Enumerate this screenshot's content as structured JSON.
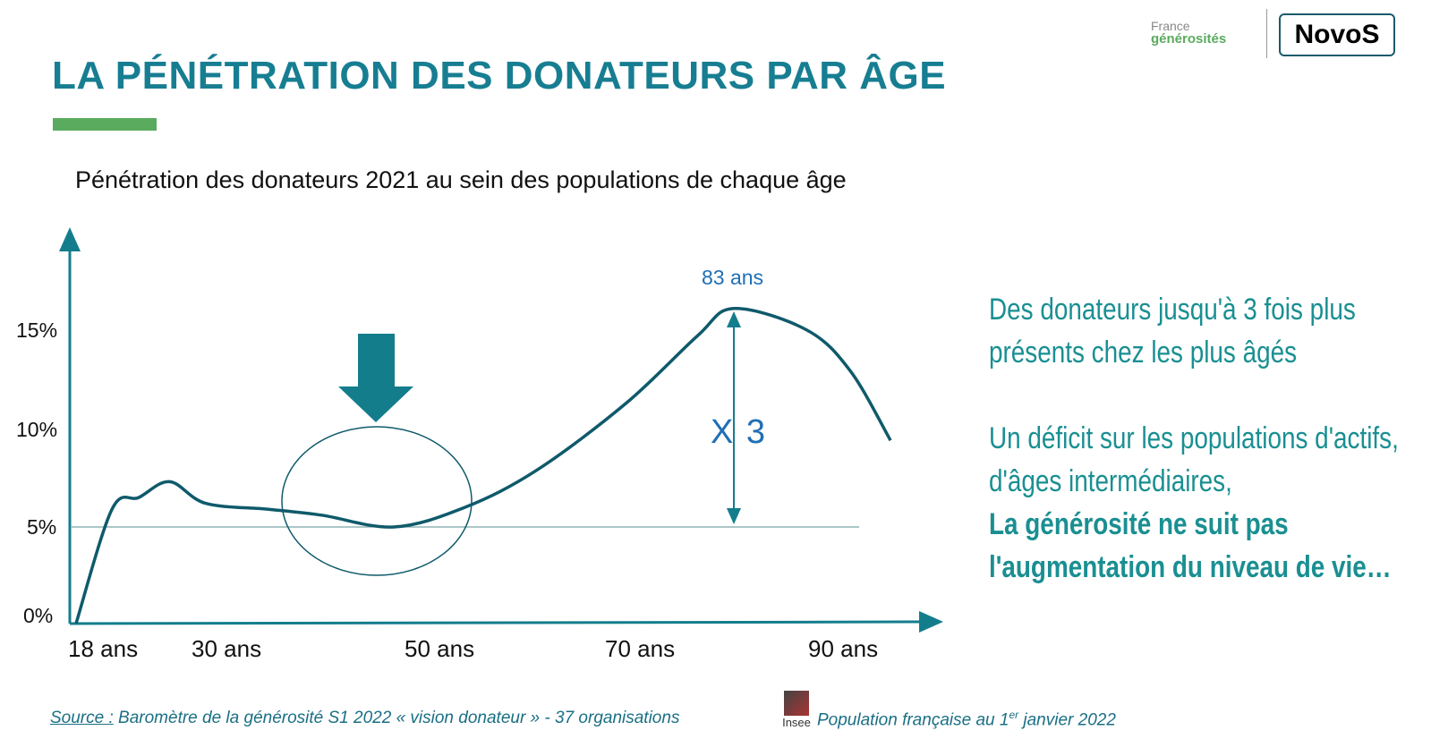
{
  "header": {
    "title": "LA PÉNÉTRATION DES DONATEURS PAR ÂGE",
    "logo_france_1": "France",
    "logo_france_2": "générosités",
    "logo_novo": "NovoS"
  },
  "subtitle": "Pénétration des donateurs 2021 au sein des populations de chaque âge",
  "chart_data": {
    "type": "line",
    "title": "Pénétration des donateurs 2021 au sein des populations de chaque âge",
    "y_ticks": [
      "0%",
      "5%",
      "10%",
      "15%"
    ],
    "x_ticks": [
      "18 ans",
      "30 ans",
      "50 ans",
      "70 ans",
      "90 ans"
    ],
    "ylim": [
      0,
      17
    ],
    "series": [
      {
        "x": [
          18,
          20.8,
          22.9,
          25.3,
          28.1,
          33.6,
          38.6,
          45.4,
          52.2,
          59.4,
          68.3,
          75.3,
          78.9,
          86.1,
          90.4,
          94.3
        ],
        "y": [
          0.1,
          5.9,
          6.5,
          7.3,
          6.2,
          5.9,
          5.6,
          5.0,
          6.0,
          7.9,
          11.3,
          14.7,
          16.1,
          15.0,
          12.9,
          9.4
        ]
      }
    ],
    "reference_line": 5,
    "annotations": {
      "peak_label": "83 ans",
      "ratio_label": "X 3"
    },
    "colors": {
      "line": "#0f5a6b",
      "arrow": "#137d8c",
      "annotation": "#1f6fb5"
    }
  },
  "right_text": {
    "p1": "Des donateurs jusqu'à 3 fois plus présents chez les plus âgés",
    "p2a": "Un déficit sur les populations d'actifs, d'âges intermédiaires,",
    "p2b": "La générosité ne suit pas l'augmentation du niveau de vie…"
  },
  "footer": {
    "source_label": "Source :",
    "source_text": " Baromètre de la générosité S1 2022 « vision donateur » - 37 organisations",
    "insee_logo": "Insee",
    "population_pre": "Population française au 1",
    "population_sup": "er",
    "population_post": " janvier 2022"
  }
}
